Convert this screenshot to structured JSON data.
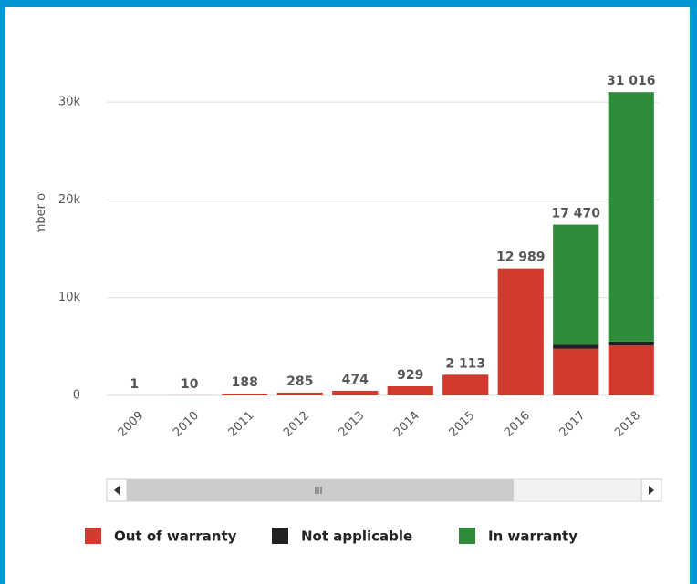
{
  "chart_data": {
    "type": "stacked_bar",
    "y_label": "Number of devices",
    "categories": [
      "2009",
      "2010",
      "2011",
      "2012",
      "2013",
      "2014",
      "2015",
      "2016",
      "2017",
      "2018"
    ],
    "series": [
      {
        "name": "Out of warranty",
        "color": "#d13b2f",
        "values": [
          1,
          10,
          188,
          285,
          474,
          929,
          2113,
          12989,
          4800,
          5100
        ]
      },
      {
        "name": "Not applicable",
        "color": "#222222",
        "values": [
          0,
          0,
          0,
          0,
          0,
          0,
          0,
          0,
          370,
          416
        ]
      },
      {
        "name": "In warranty",
        "color": "#2e8b3a",
        "values": [
          0,
          0,
          0,
          0,
          0,
          0,
          0,
          0,
          12300,
          25500
        ]
      }
    ],
    "totals": [
      1,
      10,
      188,
      285,
      474,
      929,
      2113,
      12989,
      17470,
      31016
    ],
    "totals_labels": [
      "1",
      "10",
      "188",
      "285",
      "474",
      "929",
      "2 113",
      "12 989",
      "17 470",
      "31 016"
    ],
    "ylim": [
      0,
      31500
    ],
    "yticks": [
      0,
      {
        "value": 10000,
        "label": "10k"
      },
      {
        "value": 20000,
        "label": "20k"
      },
      {
        "value": 30000,
        "label": "30k"
      }
    ],
    "grid": true
  }
}
